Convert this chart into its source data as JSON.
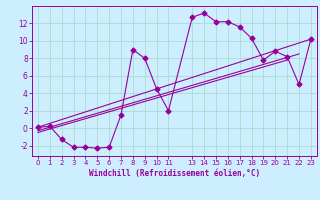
{
  "xlabel": "Windchill (Refroidissement éolien,°C)",
  "bg_color": "#cceeff",
  "line_color": "#990099",
  "grid_color": "#aaddcc",
  "xlim": [
    -0.5,
    23.5
  ],
  "ylim": [
    -3.2,
    14.0
  ],
  "xticks": [
    0,
    1,
    2,
    3,
    4,
    5,
    6,
    7,
    8,
    9,
    10,
    11,
    13,
    14,
    15,
    16,
    17,
    18,
    19,
    20,
    21,
    22,
    23
  ],
  "yticks": [
    -2,
    0,
    2,
    4,
    6,
    8,
    10,
    12
  ],
  "curve1_x": [
    0,
    1,
    2,
    3,
    4,
    5,
    6,
    7,
    8,
    9,
    10,
    11,
    13,
    14,
    15,
    16,
    17,
    18,
    19,
    20,
    21,
    22,
    23
  ],
  "curve1_y": [
    0.1,
    0.2,
    -1.3,
    -2.2,
    -2.2,
    -2.3,
    -2.2,
    1.5,
    9.0,
    8.0,
    4.5,
    2.0,
    12.7,
    13.2,
    12.2,
    12.2,
    11.6,
    10.3,
    7.8,
    8.8,
    8.2,
    5.0,
    10.2
  ],
  "line1_x": [
    0,
    23
  ],
  "line1_y": [
    0.1,
    10.2
  ],
  "line2_x": [
    0,
    22
  ],
  "line2_y": [
    -0.3,
    8.5
  ],
  "line3_x": [
    0,
    21
  ],
  "line3_y": [
    -0.5,
    7.8
  ]
}
